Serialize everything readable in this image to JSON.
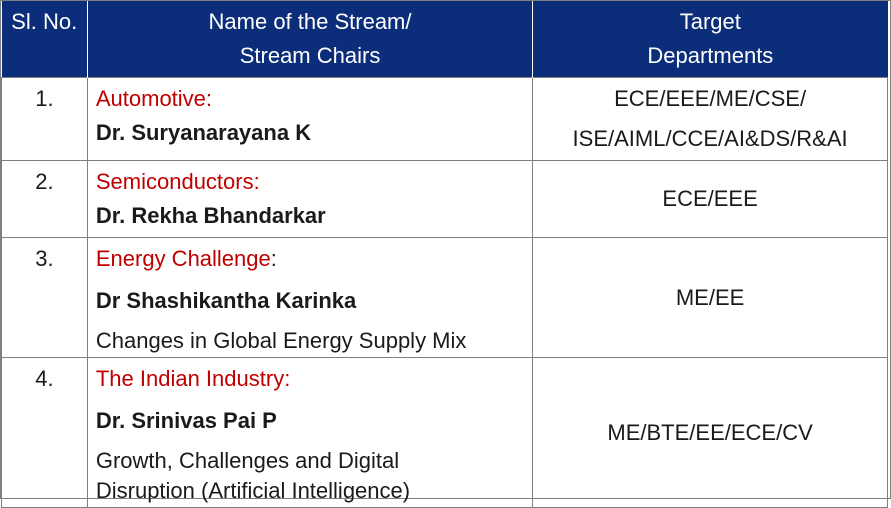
{
  "table": {
    "headers": {
      "sl": "Sl. No.",
      "stream_line1": "Name of the Stream/",
      "stream_line2": "Stream Chairs",
      "target_line1": "Target",
      "target_line2": "Departments"
    },
    "rows": [
      {
        "sl": "1.",
        "stream": "Automotive:",
        "stream_suffix": "",
        "chair": "Dr. Suryanarayana  K",
        "topic": "",
        "target_lines": [
          "ECE/EEE/ME/CSE/",
          "ISE/AIML/CCE/AI&DS/R&AI"
        ]
      },
      {
        "sl": "2.",
        "stream": "Semiconductors:",
        "stream_suffix": "",
        "chair": "Dr. Rekha Bhandarkar",
        "topic": "",
        "target_lines": [
          "ECE/EEE"
        ]
      },
      {
        "sl": "3.",
        "stream": "Energy Challenge",
        "stream_suffix": ":",
        "chair": "Dr Shashikantha Karinka",
        "topic": "Changes in Global Energy Supply Mix",
        "target_lines": [
          "ME/EE"
        ]
      },
      {
        "sl": "4.",
        "stream": "The Indian Industry:",
        "stream_suffix": "",
        "chair": "Dr. Srinivas Pai P",
        "topic_lines": [
          "Growth, Challenges and Digital",
          "Disruption (Artificial Intelligence)"
        ],
        "target_lines": [
          "ME/BTE/EE/ECE/CV"
        ]
      }
    ]
  },
  "colors": {
    "header_bg": "#0c2e7a",
    "stream_red": "#c00000"
  }
}
